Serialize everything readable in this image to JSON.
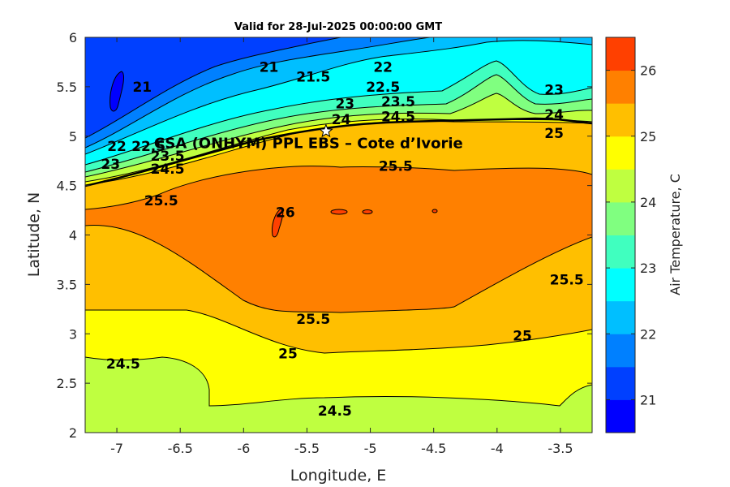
{
  "chart_data": {
    "type": "heatmap",
    "title": "Valid for 28-Jul-2025 00:00:00 GMT",
    "xlabel": "Longitude, E",
    "ylabel": "Latitude, N",
    "xlim": [
      -7.25,
      -3.25
    ],
    "ylim": [
      2,
      6
    ],
    "x_ticks": [
      -7,
      -6.5,
      -6,
      -5.5,
      -5,
      -4.5,
      -4,
      -3.5
    ],
    "y_ticks": [
      2,
      2.5,
      3,
      3.5,
      4,
      4.5,
      5,
      5.5,
      6
    ],
    "colorbar": {
      "label": "Air Temperature, C",
      "range": [
        20.5,
        26.5
      ],
      "step": 0.5,
      "ticks": [
        21,
        22,
        23,
        24,
        25,
        26
      ],
      "colors": [
        "#0000ff",
        "#0040ff",
        "#0080ff",
        "#00bfff",
        "#00ffff",
        "#40ffbf",
        "#80ff80",
        "#bfff40",
        "#ffff00",
        "#ffbf00",
        "#ff8000",
        "#ff4000"
      ]
    },
    "station": {
      "name": "CSA (ONHYM) PPL EBS  – Cote d’Ivorie",
      "lon": -5.35,
      "lat": 5.05
    },
    "contour_labels": [
      {
        "text": "21",
        "lon": -6.8,
        "lat": 5.5
      },
      {
        "text": "21",
        "lon": -5.8,
        "lat": 5.7
      },
      {
        "text": "21.5",
        "lon": -5.45,
        "lat": 5.6
      },
      {
        "text": "22",
        "lon": -4.9,
        "lat": 5.7
      },
      {
        "text": "22.5",
        "lon": -4.9,
        "lat": 5.5
      },
      {
        "text": "22",
        "lon": -7.0,
        "lat": 4.9
      },
      {
        "text": "22.5",
        "lon": -6.75,
        "lat": 4.9
      },
      {
        "text": "23",
        "lon": -5.2,
        "lat": 5.33
      },
      {
        "text": "23.5",
        "lon": -4.78,
        "lat": 5.35
      },
      {
        "text": "23",
        "lon": -3.55,
        "lat": 5.47
      },
      {
        "text": "23",
        "lon": -7.05,
        "lat": 4.72
      },
      {
        "text": "23.5",
        "lon": -6.6,
        "lat": 4.8
      },
      {
        "text": "24",
        "lon": -5.23,
        "lat": 5.17
      },
      {
        "text": "24.5",
        "lon": -4.78,
        "lat": 5.2
      },
      {
        "text": "24",
        "lon": -3.55,
        "lat": 5.22
      },
      {
        "text": "24.5",
        "lon": -6.6,
        "lat": 4.67
      },
      {
        "text": "25",
        "lon": -3.55,
        "lat": 5.03
      },
      {
        "text": "25.5",
        "lon": -4.8,
        "lat": 4.7
      },
      {
        "text": "25.5",
        "lon": -6.65,
        "lat": 4.35
      },
      {
        "text": "26",
        "lon": -5.67,
        "lat": 4.23
      },
      {
        "text": "25.5",
        "lon": -3.45,
        "lat": 3.55
      },
      {
        "text": "25.5",
        "lon": -5.45,
        "lat": 3.15
      },
      {
        "text": "25",
        "lon": -5.65,
        "lat": 2.8
      },
      {
        "text": "25",
        "lon": -3.8,
        "lat": 2.98
      },
      {
        "text": "24.5",
        "lon": -6.95,
        "lat": 2.7
      },
      {
        "text": "24.5",
        "lon": -5.28,
        "lat": 2.22
      }
    ]
  }
}
